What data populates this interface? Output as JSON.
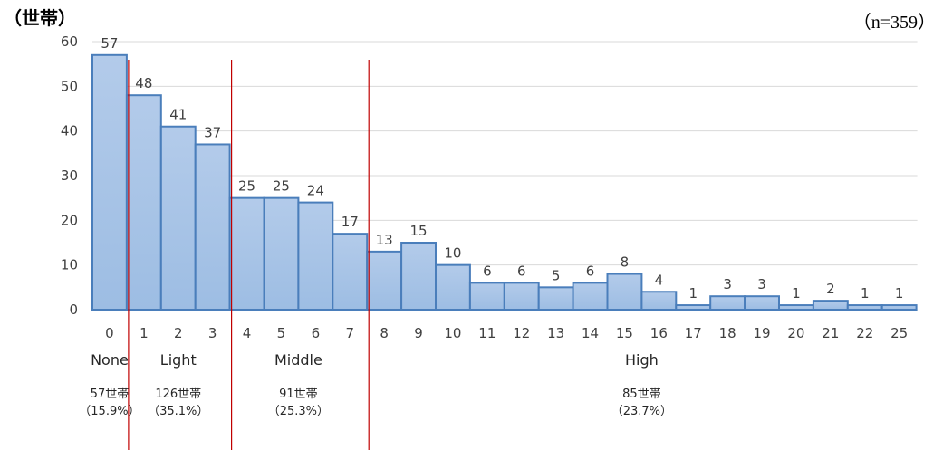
{
  "chart_data": {
    "type": "bar",
    "ylabel": "（世帯）",
    "note": "（n=359）",
    "categories": [
      "0",
      "1",
      "2",
      "3",
      "4",
      "5",
      "6",
      "7",
      "8",
      "9",
      "10",
      "11",
      "12",
      "13",
      "14",
      "15",
      "16",
      "17",
      "18",
      "19",
      "20",
      "21",
      "22",
      "25"
    ],
    "values": [
      57,
      48,
      41,
      37,
      25,
      25,
      24,
      17,
      13,
      15,
      10,
      6,
      6,
      5,
      6,
      8,
      4,
      1,
      3,
      3,
      1,
      2,
      1,
      1
    ],
    "ylim": [
      0,
      60
    ],
    "yticks": [
      0,
      10,
      20,
      30,
      40,
      50,
      60
    ],
    "grid": true,
    "bar_color": "#a9c4e6",
    "bar_stroke": "#4a7ebb",
    "divider_color": "#c00000",
    "groups": [
      {
        "name": "None",
        "count": "57世帯",
        "pct": "（15.9%）",
        "start": 0,
        "end": 0
      },
      {
        "name": "Light",
        "count": "126世帯",
        "pct": "（35.1%）",
        "start": 1,
        "end": 3
      },
      {
        "name": "Middle",
        "count": "91世帯",
        "pct": "（25.3%）",
        "start": 4,
        "end": 7
      },
      {
        "name": "High",
        "count": "85世帯",
        "pct": "（23.7%）",
        "start": 8,
        "end": 23
      }
    ]
  }
}
